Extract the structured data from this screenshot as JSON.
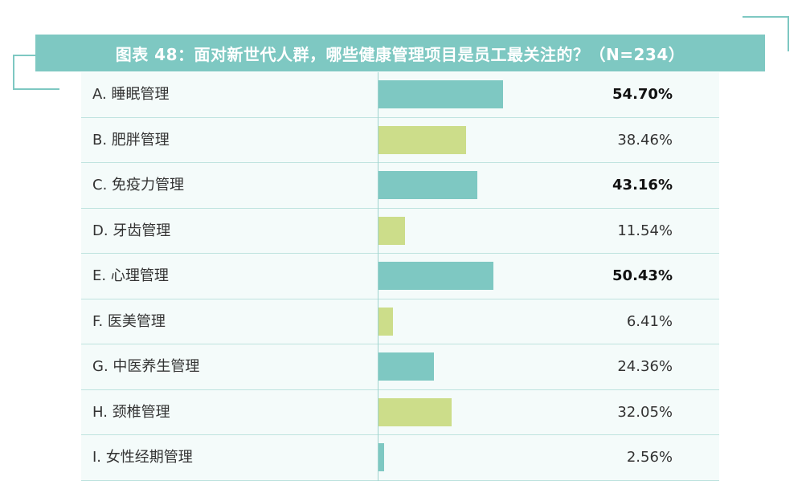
{
  "title": "图表 48：面对新世代人群，哪些健康管理项目是员工最关注的？（N=234）",
  "colors": {
    "accent": "#7ec8c2",
    "alt": "#ccdd8a",
    "row_bg": "#f4fbfa"
  },
  "chart_data": {
    "type": "bar",
    "orientation": "horizontal",
    "title": "图表 48：面对新世代人群，哪些健康管理项目是员工最关注的？（N=234）",
    "xlim": [
      0,
      100
    ],
    "categories": [
      "A. 睡眠管理",
      "B. 肥胖管理",
      "C. 免疫力管理",
      "D. 牙齿管理",
      "E. 心理管理",
      "F. 医美管理",
      "G. 中医养生管理",
      "H. 颈椎管理",
      "I. 女性经期管理"
    ],
    "values": [
      54.7,
      38.46,
      43.16,
      11.54,
      50.43,
      6.41,
      24.36,
      32.05,
      2.56
    ],
    "value_labels": [
      "54.70%",
      "38.46%",
      "43.16%",
      "11.54%",
      "50.43%",
      "6.41%",
      "24.36%",
      "32.05%",
      "2.56%"
    ],
    "bold_labels": [
      true,
      false,
      true,
      false,
      true,
      false,
      false,
      false,
      false
    ],
    "bar_colors": [
      "#7ec8c2",
      "#ccdd8a",
      "#7ec8c2",
      "#ccdd8a",
      "#7ec8c2",
      "#ccdd8a",
      "#7ec8c2",
      "#ccdd8a",
      "#7ec8c2"
    ]
  }
}
